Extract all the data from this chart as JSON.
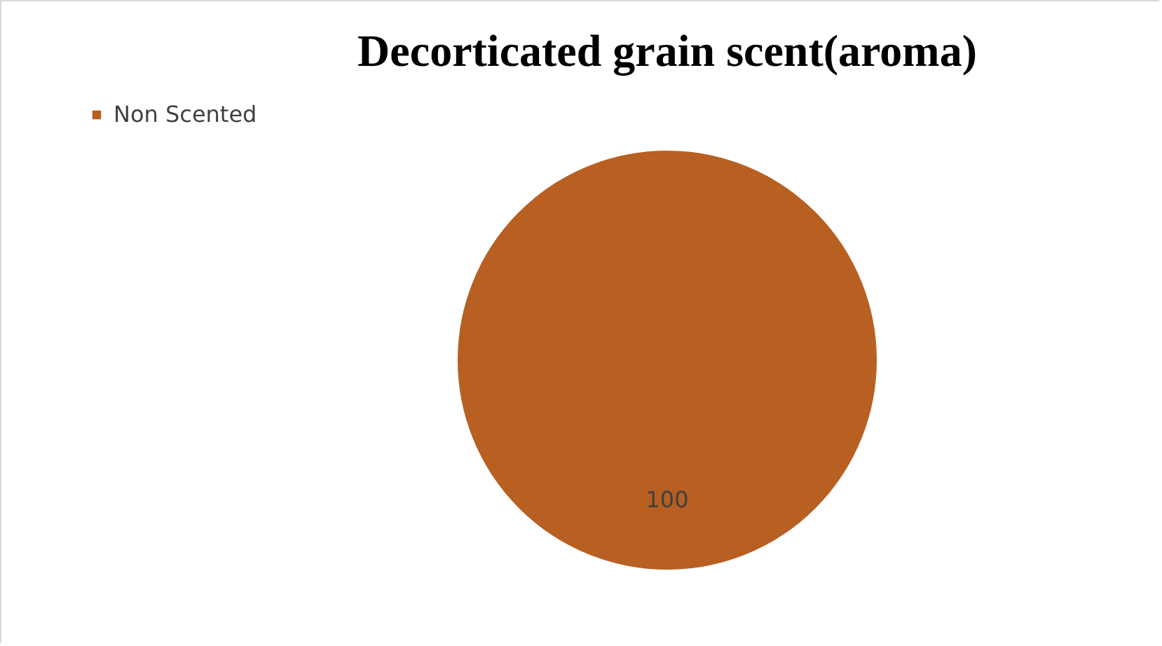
{
  "chart_data": {
    "type": "pie",
    "title": "Decorticated grain scent(aroma)",
    "categories": [
      "Non Scented"
    ],
    "values": [
      100
    ],
    "colors": [
      "#b85f22"
    ],
    "data_labels": true,
    "legend": "left"
  }
}
